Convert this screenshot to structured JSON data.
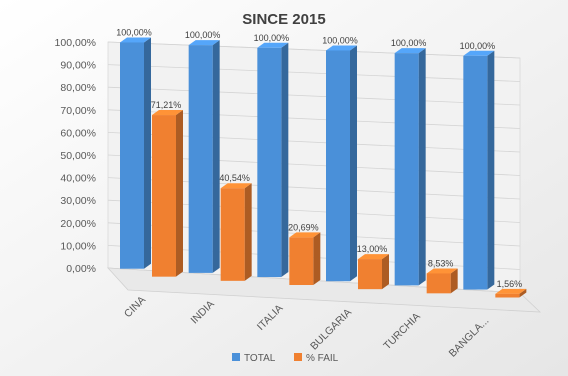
{
  "chart_data": {
    "type": "bar",
    "title": "SINCE 2015",
    "categories": [
      "CINA",
      "INDIA",
      "ITALIA",
      "BULGARIA",
      "TURCHIA",
      "BANGLA..."
    ],
    "series": [
      {
        "name": "TOTAL",
        "color": "#4a90d9",
        "values": [
          100,
          100,
          100,
          100,
          100,
          100
        ],
        "labels": [
          "100,00%",
          "100,00%",
          "100,00%",
          "100,00%",
          "100,00%",
          "100,00%"
        ]
      },
      {
        "name": "% FAIL",
        "color": "#f08030",
        "values": [
          71.21,
          40.54,
          20.69,
          13.0,
          8.53,
          1.56
        ],
        "labels": [
          "71,21%",
          "40,54%",
          "20,69%",
          "13,00%",
          "8,53%",
          "1,56%"
        ]
      }
    ],
    "ylim": [
      0,
      100
    ],
    "y_ticks": [
      "0,00%",
      "10,00%",
      "20,00%",
      "30,00%",
      "40,00%",
      "50,00%",
      "60,00%",
      "70,00%",
      "80,00%",
      "90,00%",
      "100,00%"
    ],
    "grid": true,
    "legend_position": "bottom",
    "style": "3d-column"
  }
}
